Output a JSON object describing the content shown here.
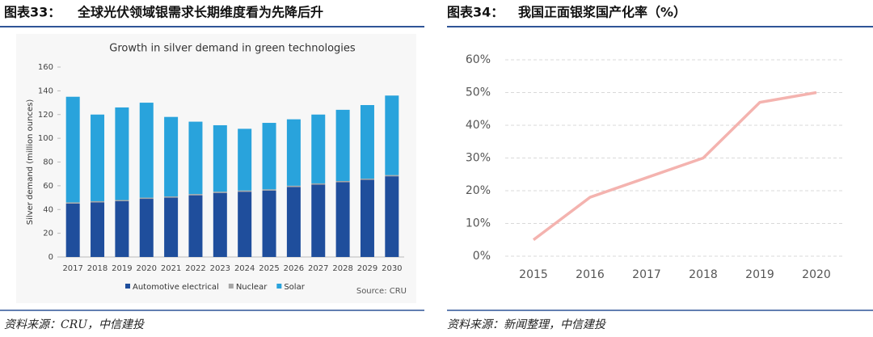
{
  "panels": [
    {
      "label": "图表33：",
      "title": "全球光伏领域银需求长期维度看为先降后升",
      "source": "资料来源：CRU，中信建投"
    },
    {
      "label": "图表34：",
      "title": "我国正面银浆国产化率（%）",
      "source": "资料来源：新闻整理，中信建投"
    }
  ],
  "chart_data": [
    {
      "type": "bar",
      "stacked": true,
      "title": "Growth in silver demand in green technologies",
      "y_label": "Silver demand (million ounces)",
      "source": "Source: CRU",
      "categories": [
        "2017",
        "2018",
        "2019",
        "2020",
        "2021",
        "2022",
        "2023",
        "2024",
        "2025",
        "2026",
        "2027",
        "2028",
        "2029",
        "2030"
      ],
      "series": [
        {
          "name": "Automotive electrical",
          "color": "#1f4e9c",
          "values": [
            45,
            46,
            47,
            49,
            50,
            52,
            54,
            55,
            56,
            59,
            61,
            63,
            65,
            68
          ]
        },
        {
          "name": "Nuclear",
          "color": "#a6a6a6",
          "values": [
            1,
            1,
            1,
            1,
            1,
            1,
            1,
            1,
            1,
            1,
            1,
            1,
            1,
            1
          ]
        },
        {
          "name": "Solar",
          "color": "#29a3dc",
          "values": [
            89,
            73,
            78,
            80,
            67,
            61,
            56,
            52,
            56,
            56,
            58,
            60,
            62,
            67
          ]
        }
      ],
      "ylim": [
        0,
        160
      ],
      "yticks": [
        0,
        20,
        40,
        60,
        80,
        100,
        120,
        140,
        160
      ],
      "grid": false,
      "legend": "bottom"
    },
    {
      "type": "line",
      "categories": [
        "2015",
        "2016",
        "2017",
        "2018",
        "2019",
        "2020"
      ],
      "series": [
        {
          "name": "国产化率",
          "color": "#f4b3af",
          "values": [
            5,
            18,
            24,
            30,
            47,
            50
          ]
        }
      ],
      "ylim": [
        0,
        60
      ],
      "yticks": [
        {
          "value": 0,
          "label": "0%"
        },
        {
          "value": 10,
          "label": "10%"
        },
        {
          "value": 20,
          "label": "20%"
        },
        {
          "value": 30,
          "label": "30%"
        },
        {
          "value": 40,
          "label": "40%"
        },
        {
          "value": 50,
          "label": "50%"
        },
        {
          "value": 60,
          "label": "60%"
        }
      ],
      "grid": true,
      "legend": "none"
    }
  ]
}
